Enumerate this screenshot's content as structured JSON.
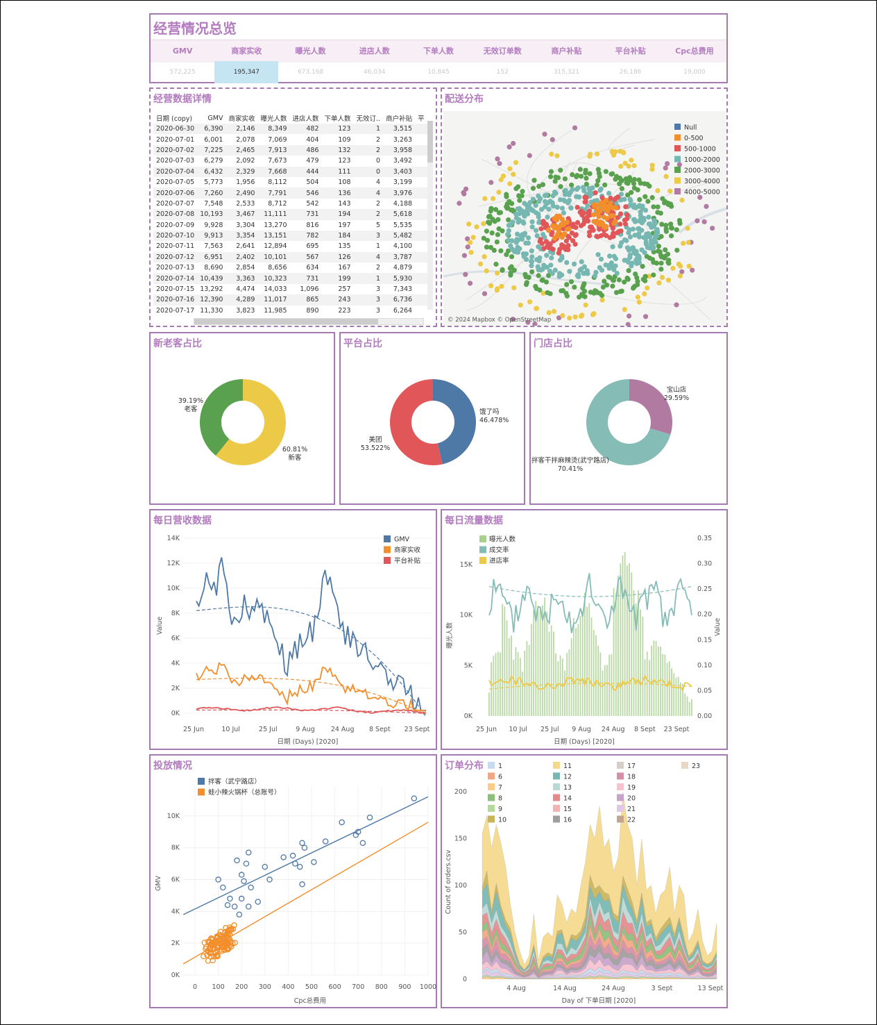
{
  "overview": {
    "title": "经营情况总览",
    "metrics": [
      {
        "label": "GMV",
        "value": "572,225",
        "selected": false
      },
      {
        "label": "商家实收",
        "value": "195,347",
        "selected": true
      },
      {
        "label": "曝光人数",
        "value": "673,168",
        "selected": false
      },
      {
        "label": "进店人数",
        "value": "46,034",
        "selected": false
      },
      {
        "label": "下单人数",
        "value": "10,845",
        "selected": false
      },
      {
        "label": "无效订单数",
        "value": "152",
        "selected": false
      },
      {
        "label": "商户补贴",
        "value": "315,321",
        "selected": false
      },
      {
        "label": "平台补贴",
        "value": "26,186",
        "selected": false
      },
      {
        "label": "Cpc总费用",
        "value": "19,000",
        "selected": false
      }
    ]
  },
  "detail_table": {
    "title": "经营数据详情",
    "columns": [
      "日期 (copy)",
      "GMV",
      "商家实收",
      "曝光人数",
      "进店人数",
      "下单人数",
      "无效订..",
      "商户补贴",
      "平"
    ],
    "rows": [
      [
        "2020-06-30",
        "6,390",
        "2,146",
        "8,349",
        "482",
        "123",
        "1",
        "3,515"
      ],
      [
        "2020-07-01",
        "6,001",
        "2,078",
        "7,069",
        "404",
        "109",
        "2",
        "3,263"
      ],
      [
        "2020-07-02",
        "7,225",
        "2,465",
        "7,913",
        "486",
        "132",
        "2",
        "3,958"
      ],
      [
        "2020-07-03",
        "6,279",
        "2,092",
        "7,673",
        "479",
        "123",
        "0",
        "3,492"
      ],
      [
        "2020-07-04",
        "6,432",
        "2,329",
        "7,668",
        "444",
        "111",
        "0",
        "3,403"
      ],
      [
        "2020-07-05",
        "5,773",
        "1,956",
        "8,112",
        "504",
        "108",
        "4",
        "3,199"
      ],
      [
        "2020-07-06",
        "7,260",
        "2,490",
        "7,791",
        "546",
        "136",
        "4",
        "3,976"
      ],
      [
        "2020-07-07",
        "7,548",
        "2,533",
        "8,712",
        "542",
        "143",
        "2",
        "4,188"
      ],
      [
        "2020-07-08",
        "10,193",
        "3,467",
        "11,111",
        "731",
        "194",
        "2",
        "5,618"
      ],
      [
        "2020-07-09",
        "9,928",
        "3,304",
        "13,270",
        "816",
        "197",
        "5",
        "5,535"
      ],
      [
        "2020-07-10",
        "9,913",
        "3,354",
        "13,151",
        "782",
        "184",
        "3",
        "5,482"
      ],
      [
        "2020-07-11",
        "7,563",
        "2,641",
        "12,894",
        "695",
        "135",
        "1",
        "4,100"
      ],
      [
        "2020-07-12",
        "6,951",
        "2,402",
        "10,101",
        "567",
        "126",
        "4",
        "3,787"
      ],
      [
        "2020-07-13",
        "8,690",
        "2,854",
        "8,656",
        "634",
        "167",
        "2",
        "4,879"
      ],
      [
        "2020-07-14",
        "10,439",
        "3,363",
        "10,323",
        "731",
        "199",
        "1",
        "5,930"
      ],
      [
        "2020-07-15",
        "13,292",
        "4,474",
        "14,033",
        "1,096",
        "257",
        "3",
        "7,343"
      ],
      [
        "2020-07-16",
        "12,390",
        "4,289",
        "11,017",
        "865",
        "243",
        "3",
        "6,736"
      ],
      [
        "2020-07-17",
        "11,330",
        "3,823",
        "11,985",
        "890",
        "223",
        "3",
        "6,264"
      ]
    ]
  },
  "map": {
    "title": "配送分布",
    "attribution": "© 2024 Mapbox © OpenStreetMap",
    "legend": [
      {
        "label": "Null",
        "color": "#4e79a7"
      },
      {
        "label": "0-500",
        "color": "#f28e2b"
      },
      {
        "label": "500-1000",
        "color": "#e15759"
      },
      {
        "label": "1000-2000",
        "color": "#76b7b2"
      },
      {
        "label": "2000-3000",
        "color": "#59a14f"
      },
      {
        "label": "3000-4000",
        "color": "#edc948"
      },
      {
        "label": "4000-5000",
        "color": "#b07aa1"
      }
    ]
  },
  "pies": [
    {
      "title": "新老客占比",
      "slices": [
        {
          "label": "老客",
          "pct": "39.19%",
          "value": 39.19,
          "color": "#59a14f"
        },
        {
          "label": "新客",
          "pct": "60.81%",
          "value": 60.81,
          "color": "#edc948"
        }
      ]
    },
    {
      "title": "平台占比",
      "slices": [
        {
          "label": "饿了吗",
          "pct": "46.478%",
          "value": 46.478,
          "color": "#4e79a7"
        },
        {
          "label": "美团",
          "pct": "53.522%",
          "value": 53.522,
          "color": "#e15759"
        }
      ]
    },
    {
      "title": "门店占比",
      "slices": [
        {
          "label": "宝山店",
          "pct": "29.59%",
          "value": 29.59,
          "color": "#b07aa1"
        },
        {
          "label": "拌客干拌麻辣烫(武宁路店)",
          "pct": "70.41%",
          "value": 70.41,
          "color": "#86bcb6"
        }
      ]
    }
  ],
  "revenue": {
    "title": "每日营收数据",
    "xlabel": "日期 (Days) [2020]",
    "ylabel": "Value",
    "yticks": [
      "0K",
      "2K",
      "4K",
      "6K",
      "8K",
      "10K",
      "12K",
      "14K"
    ],
    "xticks": [
      "25 Jun",
      "10 Jul",
      "25 Jul",
      "9 Aug",
      "24 Aug",
      "8 Sept",
      "23 Sept"
    ],
    "legend": [
      {
        "label": "GMV",
        "color": "#4e79a7"
      },
      {
        "label": "商家实收",
        "color": "#f28e2b"
      },
      {
        "label": "平台补贴",
        "color": "#e15759"
      }
    ]
  },
  "traffic": {
    "title": "每日流量数据",
    "xlabel": "日期 (Days) [2020]",
    "ylabel_left": "曝光人数",
    "ylabel_right": "Value",
    "yticks_left": [
      "0K",
      "5K",
      "10K",
      "15K"
    ],
    "yticks_right": [
      "0.00",
      "0.05",
      "0.10",
      "0.15",
      "0.20",
      "0.25",
      "0.30",
      "0.35"
    ],
    "xticks": [
      "25 Jun",
      "10 Jul",
      "25 Jul",
      "9 Aug",
      "24 Aug",
      "8 Sept",
      "23 Sept"
    ],
    "legend": [
      {
        "label": "曝光人数",
        "color": "#a8d08d"
      },
      {
        "label": "成交率",
        "color": "#86bcb6"
      },
      {
        "label": "进店率",
        "color": "#edc948"
      }
    ]
  },
  "ads": {
    "title": "投放情况",
    "xlabel": "Cpc总费用",
    "ylabel": "GMV",
    "xticks": [
      "0",
      "100",
      "200",
      "300",
      "400",
      "500",
      "600",
      "700",
      "800",
      "900",
      "1000"
    ],
    "yticks": [
      "0K",
      "2K",
      "4K",
      "6K",
      "8K",
      "10K"
    ],
    "legend": [
      {
        "label": "拌客（武宁路店）",
        "color": "#4e79a7"
      },
      {
        "label": "蛙小辣火锅杯（总账号）",
        "color": "#f28e2b"
      }
    ]
  },
  "orders": {
    "title": "订单分布",
    "xlabel": "Day of 下单日期 [2020]",
    "ylabel": "Count of orders.csv",
    "yticks": [
      "0",
      "50",
      "100",
      "150",
      "200"
    ],
    "xticks": [
      "4 Aug",
      "14 Aug",
      "24 Aug",
      "3 Sept",
      "13 Sept"
    ],
    "legend": [
      {
        "label": "1",
        "color": "#c6dbef"
      },
      {
        "label": "11",
        "color": "#f5d98b"
      },
      {
        "label": "17",
        "color": "#d6cfc7"
      },
      {
        "label": "23",
        "color": "#e8d8c8"
      },
      {
        "label": "6",
        "color": "#f4a582"
      },
      {
        "label": "12",
        "color": "#76b7b2"
      },
      {
        "label": "18",
        "color": "#d58fa7"
      },
      {
        "label": "7",
        "color": "#fbcb8a"
      },
      {
        "label": "13",
        "color": "#b9d9d4"
      },
      {
        "label": "19",
        "color": "#f6c3cf"
      },
      {
        "label": "8",
        "color": "#8bbf7a"
      },
      {
        "label": "14",
        "color": "#e48a8a"
      },
      {
        "label": "20",
        "color": "#c7a3c9"
      },
      {
        "label": "9",
        "color": "#b6d89a"
      },
      {
        "label": "15",
        "color": "#f2b3b3"
      },
      {
        "label": "21",
        "color": "#e1c6e6"
      },
      {
        "label": "10",
        "color": "#c9b45a"
      },
      {
        "label": "16",
        "color": "#9e9e9e"
      },
      {
        "label": "22",
        "color": "#c3a58f"
      }
    ]
  }
}
